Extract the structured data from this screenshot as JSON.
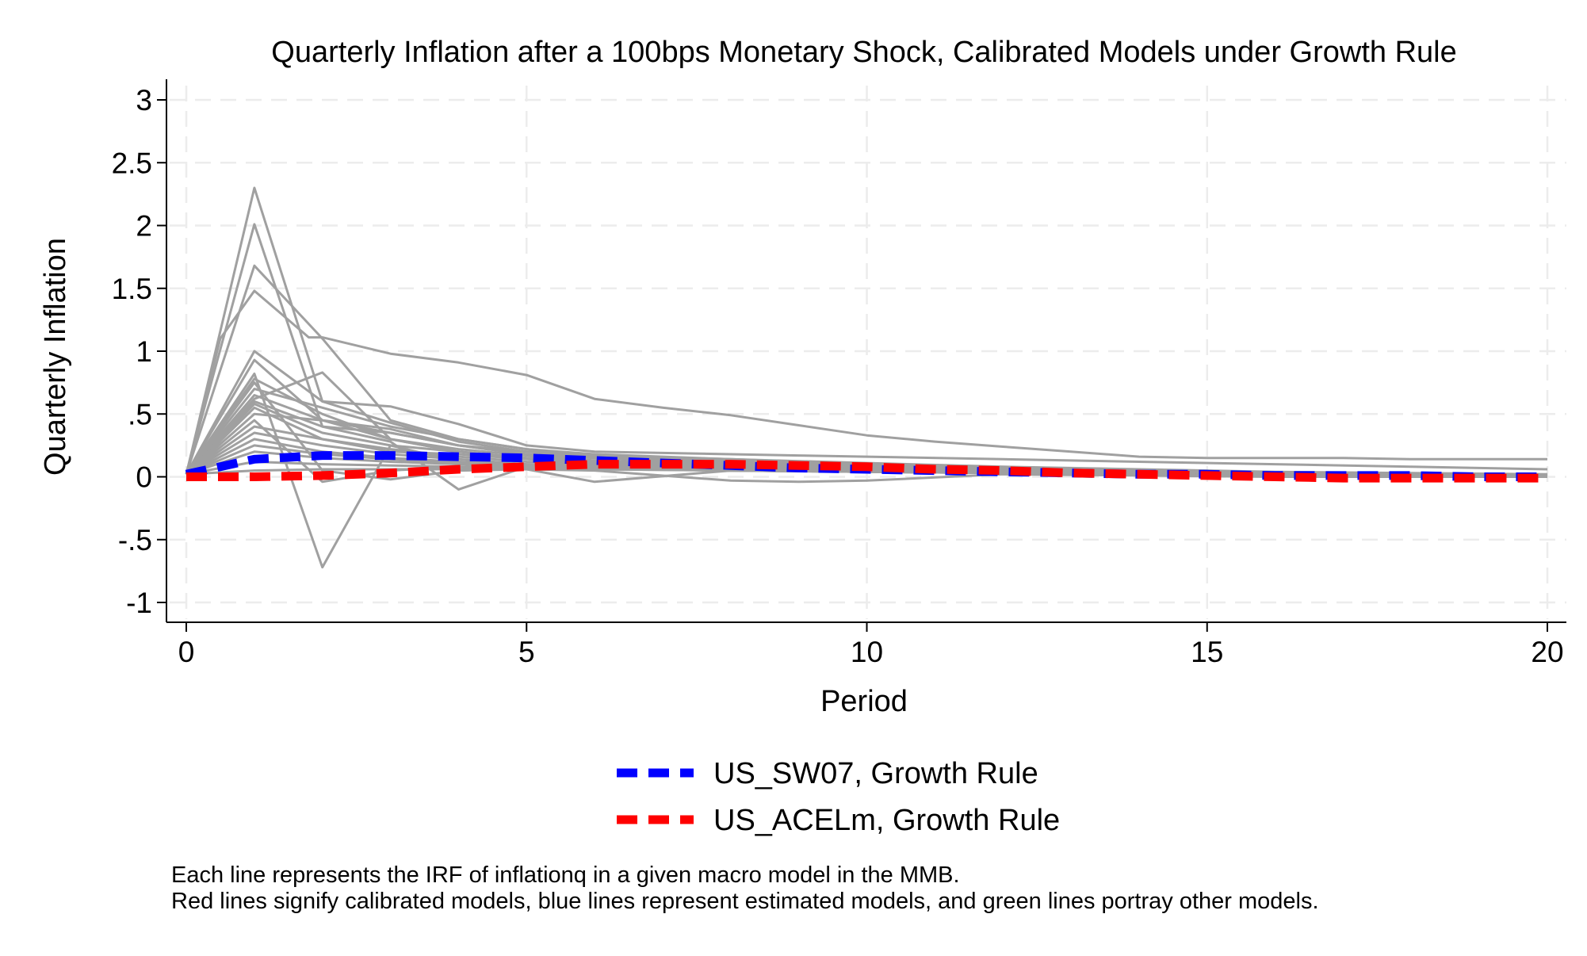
{
  "chart_data": {
    "type": "line",
    "title": "Quarterly Inflation after a 100bps Monetary Shock, Calibrated Models under Growth Rule",
    "xlabel": "Period",
    "ylabel": "Quarterly Inflation",
    "xlim": [
      0,
      20
    ],
    "ylim": [
      -1,
      3
    ],
    "xticks": [
      0,
      5,
      10,
      15,
      20
    ],
    "yticks": [
      {
        "value": -1,
        "label": "-1"
      },
      {
        "value": -0.5,
        "label": "-.5"
      },
      {
        "value": 0,
        "label": "0"
      },
      {
        "value": 0.5,
        "label": ".5"
      },
      {
        "value": 1,
        "label": "1"
      },
      {
        "value": 1.5,
        "label": "1.5"
      },
      {
        "value": 2,
        "label": "2"
      },
      {
        "value": 2.5,
        "label": "2.5"
      },
      {
        "value": 3,
        "label": "3"
      }
    ],
    "grid": true,
    "background_series_color": "#a0a0a0",
    "background_series": [
      {
        "x": [
          0,
          0.5,
          1,
          1.8,
          2,
          3,
          4,
          5,
          6,
          7,
          8,
          9,
          10,
          11,
          12,
          13,
          14,
          15,
          16,
          17,
          18,
          19,
          20
        ],
        "values": [
          0.02,
          1.1,
          1.48,
          1.11,
          1.11,
          0.98,
          0.91,
          0.81,
          0.62,
          0.55,
          0.49,
          0.41,
          0.33,
          0.28,
          0.24,
          0.2,
          0.16,
          0.15,
          0.15,
          0.15,
          0.14,
          0.14,
          0.14
        ]
      },
      {
        "x": [
          0,
          1,
          2,
          3,
          4,
          5,
          6,
          7,
          8,
          9,
          10,
          12,
          14,
          16,
          18,
          20
        ],
        "values": [
          0.02,
          2.3,
          0.6,
          0.56,
          0.42,
          0.25,
          0.2,
          0.19,
          0.18,
          0.17,
          0.16,
          0.14,
          0.12,
          0.1,
          0.08,
          0.06
        ]
      },
      {
        "x": [
          0,
          1,
          2,
          3,
          4,
          5,
          6,
          8,
          10,
          12,
          14,
          16,
          18,
          20
        ],
        "values": [
          0.02,
          2.01,
          0.4,
          0.35,
          0.25,
          0.2,
          0.17,
          0.14,
          0.11,
          0.08,
          0.06,
          0.04,
          0.03,
          0.02
        ]
      },
      {
        "x": [
          0,
          1,
          2,
          3,
          4,
          5,
          6,
          8,
          10,
          12,
          14,
          16,
          18,
          20
        ],
        "values": [
          0.02,
          1.68,
          1.1,
          0.45,
          0.3,
          0.22,
          0.18,
          0.14,
          0.1,
          0.07,
          0.05,
          0.03,
          0.02,
          0.01
        ]
      },
      {
        "x": [
          0,
          1,
          2,
          3,
          4,
          5,
          6,
          8,
          10,
          12,
          14,
          16,
          18,
          20
        ],
        "values": [
          0.02,
          1.0,
          0.6,
          0.43,
          0.28,
          0.2,
          0.16,
          0.13,
          0.1,
          0.07,
          0.05,
          0.03,
          0.02,
          0.01
        ]
      },
      {
        "x": [
          0,
          1,
          2,
          3,
          4,
          5,
          6,
          8,
          10,
          12,
          14,
          16,
          18,
          20
        ],
        "values": [
          0.02,
          0.93,
          0.45,
          0.38,
          0.25,
          0.18,
          0.15,
          0.12,
          0.09,
          0.06,
          0.04,
          0.03,
          0.02,
          0.01
        ]
      },
      {
        "x": [
          0,
          1,
          2,
          3,
          4,
          5,
          6,
          8,
          10,
          12,
          14,
          16,
          18,
          20
        ],
        "values": [
          0.02,
          0.82,
          -0.72,
          0.25,
          0.12,
          0.1,
          0.09,
          0.08,
          0.07,
          0.05,
          0.04,
          0.02,
          0.01,
          0.0
        ]
      },
      {
        "x": [
          0,
          1,
          2,
          3,
          4,
          5,
          6,
          8,
          10,
          12,
          14,
          16,
          18,
          20
        ],
        "values": [
          0.02,
          0.78,
          0.5,
          0.3,
          0.2,
          0.15,
          0.12,
          0.09,
          0.07,
          0.05,
          0.03,
          0.02,
          0.01,
          0.0
        ]
      },
      {
        "x": [
          0,
          1,
          2,
          3,
          4,
          5,
          6,
          8,
          10,
          12,
          14,
          16,
          18,
          20
        ],
        "values": [
          0.02,
          0.75,
          0.05,
          -0.02,
          0.05,
          0.06,
          -0.04,
          0.05,
          0.06,
          0.04,
          0.03,
          0.02,
          0.01,
          0.0
        ]
      },
      {
        "x": [
          0,
          1,
          2,
          3,
          4,
          5,
          6,
          8,
          10,
          12,
          14,
          16,
          18,
          20
        ],
        "values": [
          0.02,
          0.7,
          0.55,
          0.4,
          0.3,
          0.22,
          0.17,
          0.12,
          0.08,
          0.05,
          0.03,
          0.02,
          0.01,
          0.0
        ]
      },
      {
        "x": [
          0,
          1,
          2,
          3,
          4,
          5,
          6,
          8,
          10,
          12,
          14,
          16,
          18,
          20
        ],
        "values": [
          0.02,
          0.65,
          0.45,
          0.3,
          0.22,
          0.17,
          0.13,
          0.1,
          0.07,
          0.05,
          0.03,
          0.02,
          0.01,
          0.0
        ]
      },
      {
        "x": [
          0,
          1,
          2,
          3,
          4,
          5,
          6,
          8,
          10,
          12,
          14,
          16,
          18,
          20
        ],
        "values": [
          0.02,
          0.62,
          0.83,
          0.3,
          0.2,
          0.15,
          0.12,
          0.08,
          0.05,
          0.03,
          0.02,
          0.01,
          0.0,
          0.0
        ]
      },
      {
        "x": [
          0,
          1,
          2,
          3,
          4,
          5,
          6,
          8,
          10,
          12,
          14,
          16,
          18,
          20
        ],
        "values": [
          0.02,
          0.6,
          0.4,
          0.28,
          -0.1,
          0.08,
          0.1,
          0.08,
          0.06,
          0.04,
          0.03,
          0.02,
          0.01,
          0.0
        ]
      },
      {
        "x": [
          0,
          1,
          2,
          3,
          4,
          5,
          6,
          8,
          10,
          12,
          14,
          16,
          18,
          20
        ],
        "values": [
          0.02,
          0.58,
          0.35,
          0.25,
          0.2,
          0.15,
          0.12,
          0.09,
          0.06,
          0.04,
          0.03,
          0.02,
          0.01,
          0.0
        ]
      },
      {
        "x": [
          0,
          1,
          2,
          3,
          4,
          5,
          6,
          8,
          10,
          12,
          14,
          16,
          18,
          20
        ],
        "values": [
          0.02,
          0.55,
          0.3,
          0.2,
          0.18,
          0.14,
          0.11,
          0.08,
          0.05,
          0.03,
          0.02,
          0.01,
          0.0,
          0.0
        ]
      },
      {
        "x": [
          0,
          1,
          2,
          3,
          4,
          5,
          6,
          8,
          10,
          12,
          14,
          16,
          18,
          20
        ],
        "values": [
          0.02,
          0.5,
          0.45,
          0.35,
          0.25,
          0.18,
          0.15,
          0.11,
          0.08,
          0.05,
          0.03,
          0.02,
          0.01,
          0.0
        ]
      },
      {
        "x": [
          0,
          1,
          2,
          3,
          4,
          5,
          6,
          8,
          9,
          10,
          12,
          14,
          16,
          18,
          20
        ],
        "values": [
          0.02,
          0.45,
          -0.04,
          0.05,
          0.08,
          0.06,
          0.05,
          -0.03,
          -0.04,
          -0.03,
          0.02,
          0.01,
          0.0,
          0.0,
          0.0
        ]
      },
      {
        "x": [
          0,
          1,
          2,
          3,
          4,
          5,
          6,
          8,
          10,
          12,
          14,
          16,
          18,
          20
        ],
        "values": [
          0.02,
          0.4,
          0.3,
          0.22,
          0.16,
          0.12,
          0.1,
          0.07,
          0.05,
          0.03,
          0.02,
          0.01,
          0.0,
          0.0
        ]
      },
      {
        "x": [
          0,
          1,
          2,
          3,
          4,
          5,
          6,
          8,
          10,
          12,
          14,
          16,
          18,
          20
        ],
        "values": [
          0.02,
          0.35,
          0.25,
          0.18,
          0.14,
          0.1,
          0.08,
          0.06,
          0.04,
          0.03,
          0.02,
          0.01,
          0.0,
          0.0
        ]
      },
      {
        "x": [
          0,
          1,
          2,
          3,
          4,
          5,
          6,
          8,
          10,
          12,
          14,
          16,
          18,
          20
        ],
        "values": [
          0.02,
          0.3,
          0.2,
          0.15,
          0.12,
          0.09,
          0.07,
          0.05,
          0.04,
          0.03,
          0.02,
          0.01,
          0.0,
          0.0
        ]
      },
      {
        "x": [
          0,
          1,
          2,
          3,
          4,
          5,
          6,
          8,
          10,
          12,
          14,
          16,
          18,
          20
        ],
        "values": [
          0.02,
          0.25,
          0.18,
          0.14,
          0.11,
          0.09,
          0.07,
          0.05,
          0.04,
          0.03,
          0.02,
          0.01,
          0.0,
          0.0
        ]
      },
      {
        "x": [
          0,
          1,
          2,
          3,
          4,
          5,
          6,
          8,
          10,
          12,
          14,
          16,
          18,
          20
        ],
        "values": [
          0.02,
          0.2,
          0.15,
          0.12,
          0.1,
          0.08,
          0.07,
          0.05,
          0.04,
          0.03,
          0.02,
          0.01,
          0.0,
          0.0
        ]
      },
      {
        "x": [
          0,
          1,
          2,
          3,
          4,
          5,
          6,
          8,
          10,
          12,
          14,
          16,
          18,
          20
        ],
        "values": [
          0.02,
          0.12,
          0.1,
          0.09,
          0.08,
          0.07,
          0.06,
          0.05,
          0.04,
          0.03,
          0.02,
          0.01,
          0.0,
          0.0
        ]
      },
      {
        "x": [
          0,
          1,
          2,
          3,
          4,
          5,
          6,
          8,
          10,
          12,
          14,
          16,
          18,
          20
        ],
        "values": [
          0.02,
          0.05,
          0.06,
          0.06,
          0.06,
          0.06,
          0.06,
          0.05,
          0.04,
          0.03,
          0.02,
          0.01,
          0.0,
          0.0
        ]
      }
    ],
    "series": [
      {
        "name": "US_SW07, Growth Rule",
        "color": "#0000ff",
        "x": [
          0,
          1,
          2,
          3,
          4,
          5,
          6,
          7,
          8,
          9,
          10,
          11,
          12,
          13,
          14,
          15,
          16,
          17,
          18,
          19,
          20
        ],
        "values": [
          0.02,
          0.14,
          0.17,
          0.17,
          0.16,
          0.15,
          0.13,
          0.11,
          0.09,
          0.07,
          0.06,
          0.05,
          0.04,
          0.03,
          0.02,
          0.02,
          0.01,
          0.01,
          0.01,
          0.0,
          0.0
        ]
      },
      {
        "name": "US_ACELm, Growth Rule",
        "color": "#ff0000",
        "x": [
          0,
          1,
          2,
          3,
          4,
          5,
          6,
          7,
          8,
          9,
          10,
          11,
          12,
          13,
          14,
          15,
          16,
          17,
          18,
          19,
          20
        ],
        "values": [
          0.0,
          0.0,
          0.01,
          0.03,
          0.06,
          0.08,
          0.1,
          0.1,
          0.1,
          0.09,
          0.08,
          0.06,
          0.05,
          0.03,
          0.02,
          0.01,
          0.0,
          -0.01,
          -0.01,
          -0.01,
          -0.01
        ]
      }
    ],
    "legend_position": "bottom-center",
    "notes": [
      "Each line represents the IRF of inflationq in a given macro model in the MMB.",
      "Red lines signify calibrated models, blue lines represent estimated models, and green lines portray other models."
    ]
  }
}
